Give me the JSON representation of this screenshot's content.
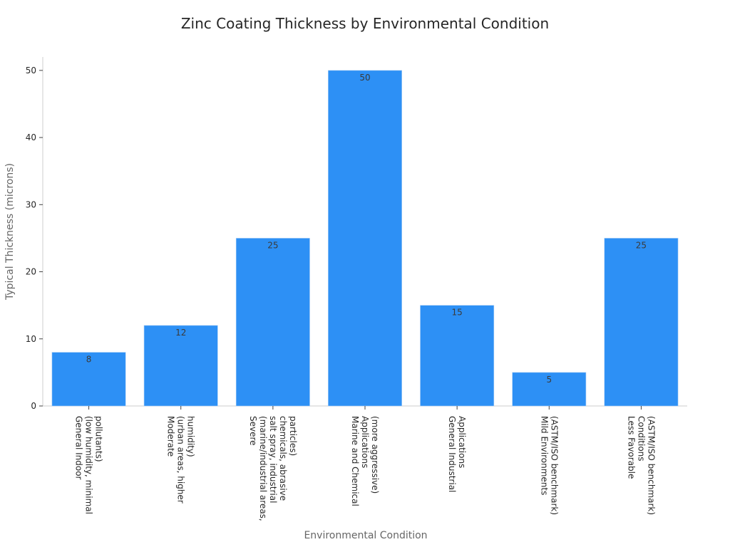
{
  "chart_data": {
    "type": "bar",
    "title": "Zinc Coating Thickness by Environmental Condition",
    "xlabel": "Environmental Condition",
    "ylabel": "Typical Thickness (microns)",
    "ylim": [
      0,
      52
    ],
    "yticks": [
      0,
      10,
      20,
      30,
      40,
      50
    ],
    "grid": false,
    "bar_color": "#2d90f5",
    "categories": [
      [
        "General Indoor",
        "(low humidity, minimal",
        "pollutants)"
      ],
      [
        "Moderate",
        "(urban areas, higher",
        "humidity)"
      ],
      [
        "Severe",
        "(marine/industrial areas,",
        "salt spray, industrial",
        "chemicals, abrasive",
        "particles)"
      ],
      [
        "Marine and Chemical",
        "Applications",
        "(more aggressive)"
      ],
      [
        "General Industrial",
        "Applications"
      ],
      [
        "Mild Environments",
        "(ASTM/ISO benchmark)"
      ],
      [
        "Less Favorable",
        "Conditions",
        "(ASTM/ISO benchmark)"
      ]
    ],
    "values": [
      8,
      12,
      25,
      50,
      15,
      5,
      25
    ]
  }
}
